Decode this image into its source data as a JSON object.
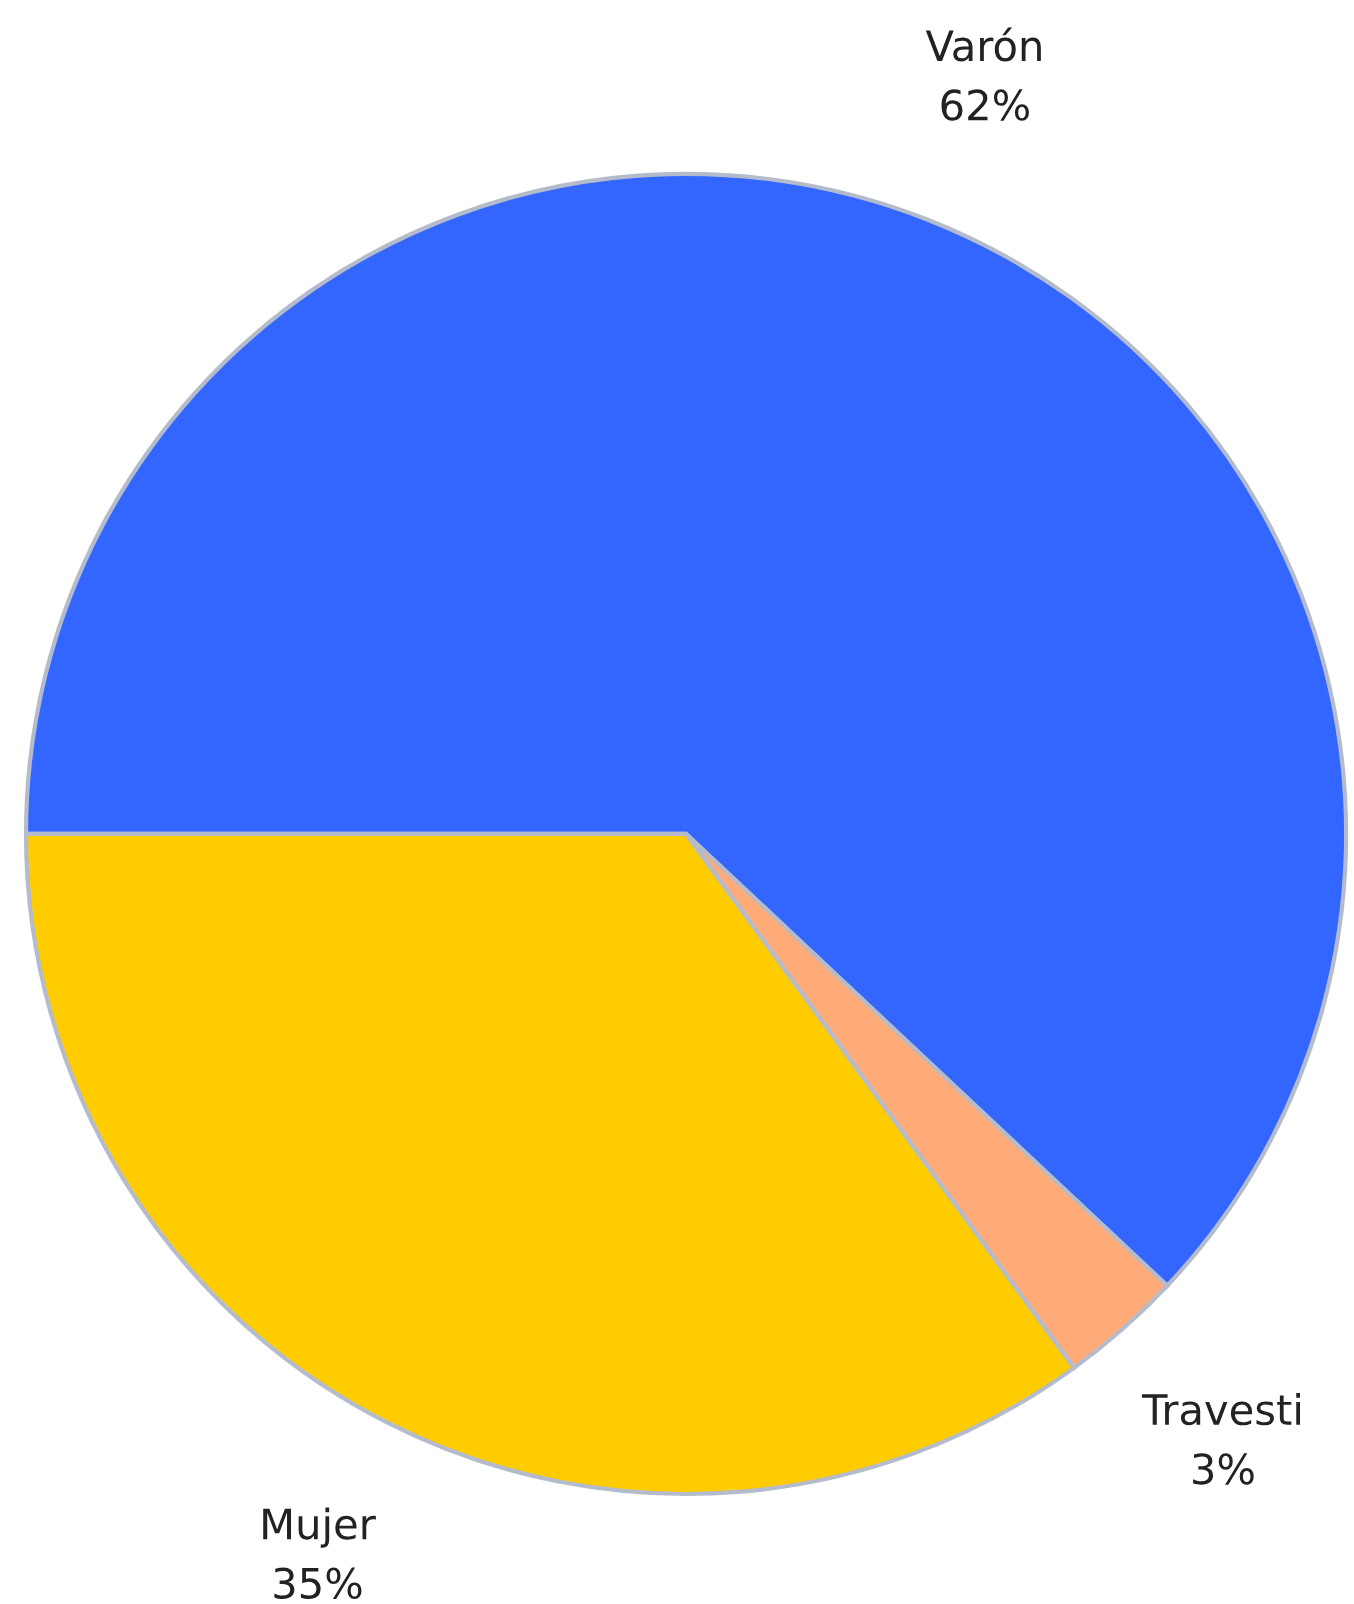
{
  "chart_data": {
    "type": "pie",
    "categories": [
      "Varón",
      "Travesti",
      "Mujer"
    ],
    "values": [
      62,
      3,
      35
    ],
    "value_labels": [
      "62%",
      "3%",
      "35%"
    ],
    "colors": [
      "#3366ff",
      "#ffaa77",
      "#ffcc00"
    ],
    "legend": false
  }
}
